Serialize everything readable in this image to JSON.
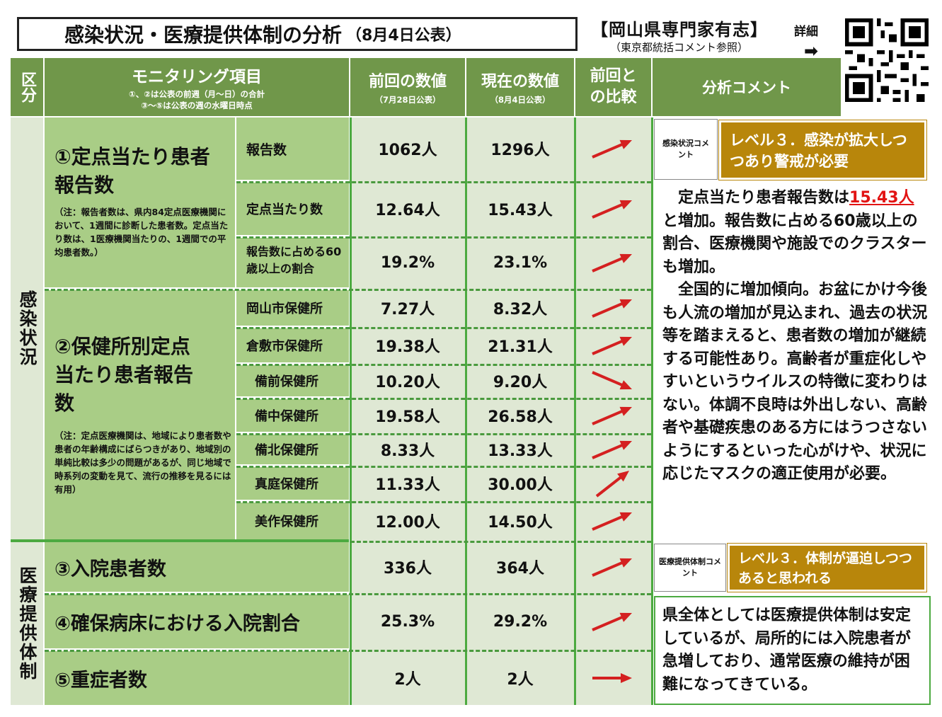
{
  "title": {
    "main": "感染状況・医療提供体制の分析",
    "date": "（8月4日公表）"
  },
  "experts": {
    "name": "【岡山県専門家有志】",
    "sub": "（東京都統括コメント参照）",
    "detail": "詳細",
    "arrow": "➡"
  },
  "header": {
    "category": "区分",
    "item": "モニタリング項目",
    "item_note1": "①、②は公表の前週（月～日）の合計",
    "item_note2": "③～⑤は公表の週の水曜日時点",
    "prev": "前回の数値",
    "prev_date": "（7月28日公表）",
    "curr": "現在の数値",
    "curr_date": "（8月4日公表）",
    "compare": "前回との比較",
    "comment": "分析コメント"
  },
  "sections": {
    "infection": "感染状況",
    "medical": "医療提供体制"
  },
  "groups": {
    "g1_title": "①定点当たり患者報告数",
    "g1_note": "（注：報告者数は、県内84定点医療機関において、1週間に診断した患者数。定点当たり数は、1医療機関当たりの、1週間での平均患者数。）",
    "g2_title": "②保健所別定点当たり患者報告数",
    "g2_note": "（注：定点医療機関は、地域により患者数や患者の年齢構成にばらつきがあり、地域別の単純比較は多少の問題があるが、同じ地域で時系列の変動を見て、流行の推移を見るには有用）"
  },
  "rows": [
    {
      "label": "報告数",
      "prev": "1062人",
      "curr": "1296人",
      "trend": "up"
    },
    {
      "label": "定点当たり数",
      "prev": "12.64人",
      "curr": "15.43人",
      "trend": "up"
    },
    {
      "label": "報告数に占める60歳以上の割合",
      "prev": "19.2%",
      "curr": "23.1%",
      "trend": "up"
    },
    {
      "label": "岡山市保健所",
      "prev": "7.27人",
      "curr": "8.32人",
      "trend": "up"
    },
    {
      "label": "倉敷市保健所",
      "prev": "19.38人",
      "curr": "21.31人",
      "trend": "up"
    },
    {
      "label": "備前保健所",
      "prev": "10.20人",
      "curr": "9.20人",
      "trend": "down"
    },
    {
      "label": "備中保健所",
      "prev": "19.58人",
      "curr": "26.58人",
      "trend": "up"
    },
    {
      "label": "備北保健所",
      "prev": "8.33人",
      "curr": "13.33人",
      "trend": "up"
    },
    {
      "label": "真庭保健所",
      "prev": "11.33人",
      "curr": "30.00人",
      "trend": "up-steep"
    },
    {
      "label": "美作保健所",
      "prev": "12.00人",
      "curr": "14.50人",
      "trend": "up"
    },
    {
      "label": "③入院患者数",
      "prev": "336人",
      "curr": "364人",
      "trend": "up"
    },
    {
      "label": "④確保病床における入院割合",
      "prev": "25.3%",
      "curr": "29.2%",
      "trend": "up"
    },
    {
      "label": "⑤重症者数",
      "prev": "2人",
      "curr": "2人",
      "trend": "flat"
    }
  ],
  "infection_comment": {
    "label": "感染状況コメント",
    "level": "レベル３．感染が拡大しつつあり警戒が必要",
    "text_a": "　定点当たり患者報告数は",
    "text_red": "15.43人",
    "text_b": "と増加。報告数に占める60歳以上の割合、医療機関や施設でのクラスターも増加。\n　全国的に増加傾向。お盆にかけ今後も人流の増加が見込まれ、過去の状況等を踏まえると、患者数の増加が継続する可能性あり。高齢者が重症化しやすいというウイルスの特徴に変わりはない。体調不良時は外出しない、高齢者や基礎疾患のある方にはうつさないようにするといった心がけや、状況に応じたマスクの適正使用が必要。"
  },
  "medical_comment": {
    "label": "医療提供体制コメント",
    "level": "レベル３．体制が逼迫しつつあると思われる",
    "text": "県全体としては医療提供体制は安定しているが、局所的には入院患者が急増しており、通常医療の維持が困難になってきている。"
  },
  "colors": {
    "header_green": "#70974a",
    "light_green": "#a9cd86",
    "gold": "#b8860b",
    "arrow_red": "#d42020",
    "highlight_red": "#e21414"
  }
}
